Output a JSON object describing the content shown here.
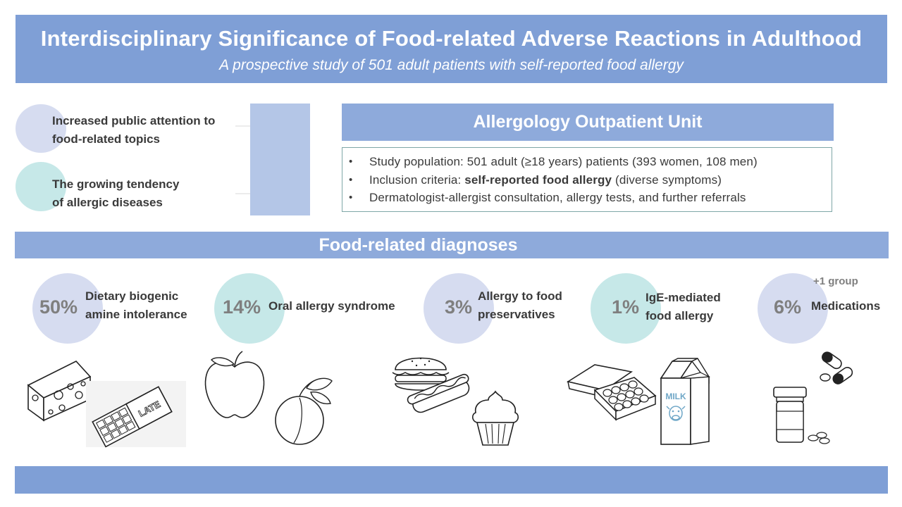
{
  "header": {
    "title": "Interdisciplinary Significance of Food-related Adverse Reactions in Adulthood",
    "subtitle": "A prospective study of 501 adult patients with self-reported food allergy"
  },
  "motivations": [
    {
      "text": "Increased public attention to\nfood-related topics",
      "color": "#d6dcf0"
    },
    {
      "text": "The growing tendency\nof allergic diseases",
      "color": "#c6e8e8"
    }
  ],
  "unit": {
    "title": "Allergology Outpatient Unit",
    "bullets": [
      {
        "pre": "Study population: 501 adult (≥18 years) patients (393 women, 108 men)",
        "bold": "",
        "post": ""
      },
      {
        "pre": "Inclusion criteria: ",
        "bold": "self-reported food allergy",
        "post": " (diverse symptoms)"
      },
      {
        "pre": "Dermatologist-allergist consultation, allergy tests, and further referrals",
        "bold": "",
        "post": ""
      }
    ]
  },
  "diagnoses": {
    "heading": "Food-related diagnoses",
    "items": [
      {
        "percent": "50%",
        "label": "Dietary biogenic\namine intolerance",
        "color": "#d6dcf0",
        "icons": [
          "cheese-icon",
          "chocolate-bar-icon"
        ]
      },
      {
        "percent": "14%",
        "label": "Oral allergy syndrome",
        "color": "#c6e8e8",
        "icons": [
          "apple-icon",
          "peach-icon"
        ]
      },
      {
        "percent": "3%",
        "label": "Allergy to food\npreservatives",
        "color": "#d6dcf0",
        "icons": [
          "burger-icon",
          "hotdog-icon",
          "cupcake-icon"
        ]
      },
      {
        "percent": "1%",
        "label": "IgE-mediated\nfood allergy",
        "color": "#c6e8e8",
        "icons": [
          "egg-carton-icon",
          "milk-carton-icon"
        ]
      },
      {
        "percent": "6%",
        "label": "Medications",
        "color": "#d6dcf0",
        "icons": [
          "pills-icon",
          "pill-bottle-icon"
        ]
      }
    ],
    "extra_note": "+1 group"
  },
  "illustration_text": {
    "chocolate": "LATE",
    "milk": "MILK"
  },
  "colors": {
    "header_bg": "#7f9fd6",
    "section_bar": "#8eaadb",
    "side_bar": "#b4c6e7",
    "circle_lavender": "#d6dcf0",
    "circle_teal": "#c6e8e8",
    "percent_text": "#7f7f7f"
  }
}
